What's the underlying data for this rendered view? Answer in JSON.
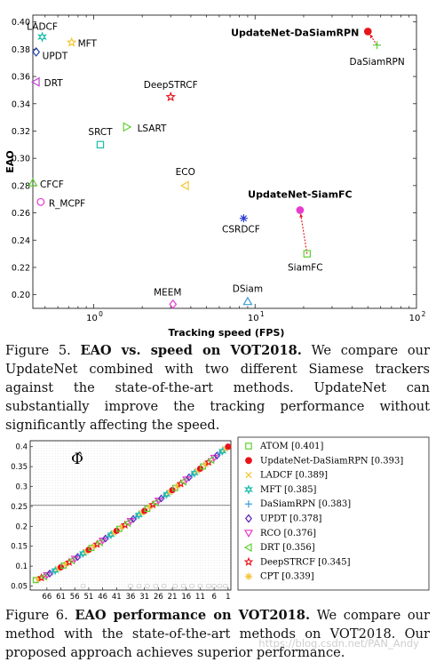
{
  "figure5": {
    "chart_data": {
      "type": "scatter",
      "xscale": "log",
      "xlabel": "Tracking speed (FPS)",
      "ylabel": "EAO",
      "xlim": [
        0.42,
        100
      ],
      "ylim": [
        0.19,
        0.405
      ],
      "xticks": [
        {
          "v": 1,
          "label": "10^0"
        },
        {
          "v": 10,
          "label": "10^1"
        },
        {
          "v": 100,
          "label": "10^2"
        }
      ],
      "yticks": [
        0.2,
        0.22,
        0.24,
        0.26,
        0.28,
        0.3,
        0.32,
        0.34,
        0.36,
        0.38,
        0.4
      ],
      "grid": false,
      "points": [
        {
          "name": "UpdateNet-DaSiamRPN",
          "x": 50,
          "y": 0.393,
          "marker": "dot",
          "color": "#e8141b",
          "bold": true,
          "lx": -10,
          "ly": 5,
          "anchor": "end"
        },
        {
          "name": "DaSiamRPN",
          "x": 57,
          "y": 0.383,
          "marker": "plus",
          "color": "#5fd030",
          "bold": false,
          "lx": 0,
          "ly": 22,
          "anchor": "middle"
        },
        {
          "name": "LADCF",
          "x": 0.48,
          "y": 0.389,
          "marker": "star6",
          "color": "#1bbcaa",
          "bold": false,
          "lx": 0,
          "ly": -8,
          "anchor": "middle"
        },
        {
          "name": "MFT",
          "x": 0.73,
          "y": 0.385,
          "marker": "star5",
          "color": "#f4c430",
          "bold": false,
          "lx": 7,
          "ly": 5,
          "anchor": "start"
        },
        {
          "name": "UPDT",
          "x": 0.44,
          "y": 0.378,
          "marker": "diamond",
          "color": "#1b3ea8",
          "bold": false,
          "lx": 7,
          "ly": 8,
          "anchor": "start"
        },
        {
          "name": "DRT",
          "x": 0.44,
          "y": 0.356,
          "marker": "triangle-left",
          "color": "#c040d0",
          "bold": false,
          "lx": 9,
          "ly": 5,
          "anchor": "start"
        },
        {
          "name": "DeepSTRCF",
          "x": 3.0,
          "y": 0.345,
          "marker": "star5",
          "color": "#e8141b",
          "bold": false,
          "lx": 0,
          "ly": -10,
          "anchor": "middle"
        },
        {
          "name": "LSART",
          "x": 1.6,
          "y": 0.323,
          "marker": "triangle-right",
          "color": "#5fd030",
          "bold": false,
          "lx": 12,
          "ly": 5,
          "anchor": "start"
        },
        {
          "name": "SRCT",
          "x": 1.1,
          "y": 0.31,
          "marker": "square",
          "color": "#1bbcaa",
          "bold": false,
          "lx": 0,
          "ly": -11,
          "anchor": "middle"
        },
        {
          "name": "ECO",
          "x": 3.7,
          "y": 0.28,
          "marker": "triangle-left",
          "color": "#f4c430",
          "bold": false,
          "lx": 0,
          "ly": -12,
          "anchor": "middle"
        },
        {
          "name": "CFCF",
          "x": 0.42,
          "y": 0.282,
          "marker": "triangle-up",
          "color": "#5fd030",
          "bold": false,
          "lx": 8,
          "ly": 5,
          "anchor": "start"
        },
        {
          "name": "R_MCPF",
          "x": 0.47,
          "y": 0.268,
          "marker": "circle",
          "color": "#e83ad0",
          "bold": false,
          "lx": 9,
          "ly": 5,
          "anchor": "start"
        },
        {
          "name": "UpdateNet-SiamFC",
          "x": 19,
          "y": 0.262,
          "marker": "dot",
          "color": "#e83ad0",
          "bold": true,
          "lx": 0,
          "ly": -14,
          "anchor": "middle"
        },
        {
          "name": "CSRDCF",
          "x": 8.5,
          "y": 0.256,
          "marker": "asterisk",
          "color": "#2a3bd0",
          "bold": false,
          "lx": -3,
          "ly": 16,
          "anchor": "middle"
        },
        {
          "name": "SiamFC",
          "x": 21,
          "y": 0.23,
          "marker": "square",
          "color": "#5fd030",
          "bold": false,
          "lx": -2,
          "ly": 19,
          "anchor": "middle"
        },
        {
          "name": "MEEM",
          "x": 3.1,
          "y": 0.193,
          "marker": "diamond",
          "color": "#e83ad0",
          "bold": false,
          "lx": -6,
          "ly": -10,
          "anchor": "middle"
        },
        {
          "name": "DSiam",
          "x": 9.0,
          "y": 0.195,
          "marker": "triangle-up",
          "color": "#3a9ad8",
          "bold": false,
          "lx": 0,
          "ly": -11,
          "anchor": "middle"
        }
      ],
      "arrows": [
        {
          "from": [
            57,
            0.383
          ],
          "to": [
            50,
            0.393
          ],
          "color": "#e8141b"
        },
        {
          "from": [
            21,
            0.23
          ],
          "to": [
            19,
            0.262
          ],
          "color": "#e8141b"
        }
      ]
    },
    "caption": {
      "label": "Figure 5.",
      "bold": "EAO vs. speed on VOT2018.",
      "text": "We compare our UpdateNet combined with two different Siamese trackers against the state-of-the-art methods. UpdateNet can substantially improve the tracking performance without significantly affecting the speed."
    }
  },
  "figure6": {
    "chart_data": {
      "type": "scatter",
      "title": "Φ̂",
      "ylim": [
        0.05,
        0.4
      ],
      "yticks": [
        0.05,
        0.1,
        0.15,
        0.2,
        0.25,
        0.3,
        0.35,
        0.4
      ],
      "xticks": [
        66,
        61,
        56,
        51,
        46,
        41,
        36,
        31,
        26,
        21,
        16,
        11,
        6,
        1
      ],
      "xlim": [
        72,
        0
      ],
      "reference_line": 0.253,
      "legend_placement": "right",
      "legend": [
        {
          "label": "ATOM [0.401]",
          "marker": "square",
          "color": "#5fd030"
        },
        {
          "label": "UpdateNet-DaSiamRPN [0.393]",
          "marker": "dot",
          "color": "#e8141b"
        },
        {
          "label": "LADCF [0.389]",
          "marker": "x",
          "color": "#f4c430"
        },
        {
          "label": "MFT [0.385]",
          "marker": "star6",
          "color": "#1bbcaa"
        },
        {
          "label": "DaSiamRPN [0.383]",
          "marker": "plus",
          "color": "#3a9ad8"
        },
        {
          "label": "UPDT [0.378]",
          "marker": "diamond",
          "color": "#5b21b6"
        },
        {
          "label": "RCO [0.376]",
          "marker": "triangle-down",
          "color": "#e83ad0"
        },
        {
          "label": "DRT [0.356]",
          "marker": "triangle-left",
          "color": "#5fd030"
        },
        {
          "label": "DeepSTRCF [0.345]",
          "marker": "star5",
          "color": "#e8141b"
        },
        {
          "label": "CPT [0.339]",
          "marker": "asterisk",
          "color": "#f4c430"
        }
      ]
    },
    "caption": {
      "label": "Figure 6.",
      "bold": "EAO performance on VOT2018.",
      "text": "We compare our method with the state-of-the-art methods on VOT2018. Our proposed approach achieves superior performance."
    }
  },
  "watermark": "https://blog.csdn.net/PAN_Andy"
}
